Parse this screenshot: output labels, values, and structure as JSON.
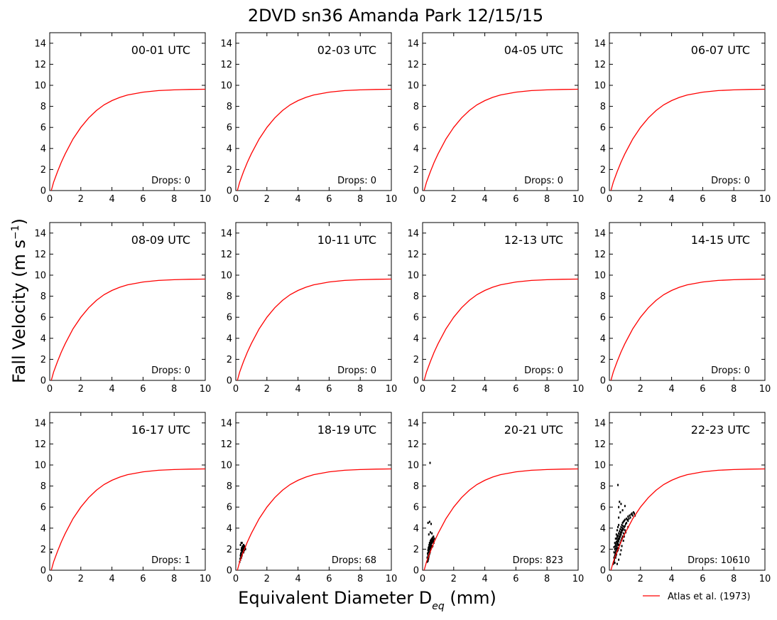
{
  "chart_data": {
    "type": "scatter",
    "title": "2DVD sn36 Amanda Park 12/15/15",
    "xlabel": "Equivalent Diameter D",
    "xlabel_sub": "eq",
    "xlabel_unit": " (mm)",
    "ylabel": "Fall Velocity (m s",
    "ylabel_sup": "−1",
    "ylabel_end": ")",
    "xlim": [
      0,
      10
    ],
    "ylim": [
      0,
      15
    ],
    "xticks": [
      0,
      2,
      4,
      6,
      8,
      10
    ],
    "yticks": [
      0,
      2,
      4,
      6,
      8,
      10,
      12,
      14
    ],
    "grid": false,
    "legend": {
      "placement": "bottom-right",
      "entries": [
        {
          "label": "Atlas et al. (1973)",
          "color": "#ff0000"
        }
      ]
    },
    "curve": {
      "name": "Atlas et al. (1973)",
      "color": "#ff0000",
      "points": [
        [
          0.1,
          0.0
        ],
        [
          0.25,
          0.8
        ],
        [
          0.5,
          1.8
        ],
        [
          0.75,
          2.7
        ],
        [
          1.0,
          3.5
        ],
        [
          1.5,
          4.9
        ],
        [
          2.0,
          6.0
        ],
        [
          2.5,
          6.9
        ],
        [
          3.0,
          7.6
        ],
        [
          3.5,
          8.15
        ],
        [
          4.0,
          8.55
        ],
        [
          4.5,
          8.85
        ],
        [
          5.0,
          9.08
        ],
        [
          6.0,
          9.35
        ],
        [
          7.0,
          9.5
        ],
        [
          8.0,
          9.57
        ],
        [
          9.0,
          9.61
        ],
        [
          10.0,
          9.63
        ]
      ]
    },
    "panels": [
      {
        "title": "00-01 UTC",
        "drops_label": "Drops: 0",
        "drops": 0,
        "points": []
      },
      {
        "title": "02-03 UTC",
        "drops_label": "Drops: 0",
        "drops": 0,
        "points": []
      },
      {
        "title": "04-05 UTC",
        "drops_label": "Drops: 0",
        "drops": 0,
        "points": []
      },
      {
        "title": "06-07 UTC",
        "drops_label": "Drops: 0",
        "drops": 0,
        "points": []
      },
      {
        "title": "08-09 UTC",
        "drops_label": "Drops: 0",
        "drops": 0,
        "points": []
      },
      {
        "title": "10-11 UTC",
        "drops_label": "Drops: 0",
        "drops": 0,
        "points": []
      },
      {
        "title": "12-13 UTC",
        "drops_label": "Drops: 0",
        "drops": 0,
        "points": []
      },
      {
        "title": "14-15 UTC",
        "drops_label": "Drops: 0",
        "drops": 0,
        "points": []
      },
      {
        "title": "16-17 UTC",
        "drops_label": "Drops: 1",
        "drops": 1,
        "points": [
          [
            0.1,
            1.7
          ]
        ]
      },
      {
        "title": "18-19 UTC",
        "drops_label": "Drops: 68",
        "drops": 68,
        "points": [
          [
            0.25,
            0.8
          ],
          [
            0.28,
            1.1
          ],
          [
            0.3,
            1.4
          ],
          [
            0.3,
            1.0
          ],
          [
            0.32,
            1.6
          ],
          [
            0.33,
            1.3
          ],
          [
            0.35,
            1.9
          ],
          [
            0.35,
            1.5
          ],
          [
            0.37,
            2.1
          ],
          [
            0.38,
            1.7
          ],
          [
            0.4,
            2.0
          ],
          [
            0.4,
            1.4
          ],
          [
            0.42,
            2.2
          ],
          [
            0.43,
            1.8
          ],
          [
            0.45,
            2.3
          ],
          [
            0.45,
            1.9
          ],
          [
            0.47,
            2.1
          ],
          [
            0.5,
            2.4
          ],
          [
            0.5,
            2.0
          ],
          [
            0.5,
            1.7
          ],
          [
            0.52,
            2.2
          ],
          [
            0.55,
            2.3
          ],
          [
            0.55,
            1.9
          ],
          [
            0.58,
            2.1
          ],
          [
            0.3,
            2.4
          ],
          [
            0.35,
            2.6
          ],
          [
            0.4,
            2.6
          ],
          [
            0.6,
            2.2
          ],
          [
            0.62,
            2.0
          ],
          [
            0.36,
            1.2
          ]
        ]
      },
      {
        "title": "20-21 UTC",
        "drops_label": "Drops: 823",
        "drops": 823,
        "points": [
          [
            0.3,
            0.8
          ],
          [
            0.3,
            1.2
          ],
          [
            0.32,
            1.6
          ],
          [
            0.33,
            1.0
          ],
          [
            0.35,
            1.9
          ],
          [
            0.35,
            1.4
          ],
          [
            0.37,
            2.1
          ],
          [
            0.38,
            1.7
          ],
          [
            0.4,
            2.2
          ],
          [
            0.4,
            1.8
          ],
          [
            0.4,
            1.3
          ],
          [
            0.42,
            2.4
          ],
          [
            0.42,
            2.0
          ],
          [
            0.45,
            2.6
          ],
          [
            0.45,
            2.2
          ],
          [
            0.45,
            1.6
          ],
          [
            0.47,
            2.4
          ],
          [
            0.48,
            2.0
          ],
          [
            0.5,
            2.8
          ],
          [
            0.5,
            2.4
          ],
          [
            0.5,
            1.9
          ],
          [
            0.52,
            2.6
          ],
          [
            0.52,
            2.2
          ],
          [
            0.55,
            2.9
          ],
          [
            0.55,
            2.5
          ],
          [
            0.55,
            2.1
          ],
          [
            0.58,
            2.7
          ],
          [
            0.58,
            2.3
          ],
          [
            0.6,
            3.0
          ],
          [
            0.6,
            2.6
          ],
          [
            0.6,
            2.2
          ],
          [
            0.62,
            2.8
          ],
          [
            0.65,
            3.1
          ],
          [
            0.65,
            2.7
          ],
          [
            0.65,
            2.3
          ],
          [
            0.68,
            2.9
          ],
          [
            0.7,
            3.2
          ],
          [
            0.7,
            2.8
          ],
          [
            0.72,
            2.6
          ],
          [
            0.75,
            3.0
          ],
          [
            0.35,
            0.9
          ],
          [
            0.38,
            1.1
          ],
          [
            0.43,
            1.5
          ],
          [
            0.48,
            1.7
          ],
          [
            0.53,
            2.0
          ],
          [
            0.35,
            4.5
          ],
          [
            0.45,
            4.6
          ],
          [
            0.5,
            3.6
          ],
          [
            0.55,
            4.4
          ],
          [
            0.4,
            3.4
          ],
          [
            0.6,
            3.5
          ],
          [
            0.48,
            10.2
          ]
        ]
      },
      {
        "title": "22-23 UTC",
        "drops_label": "Drops: 10610",
        "drops": 10610,
        "points": [
          [
            0.25,
            0.6
          ],
          [
            0.3,
            0.8
          ],
          [
            0.3,
            1.2
          ],
          [
            0.3,
            1.7
          ],
          [
            0.32,
            1.0
          ],
          [
            0.35,
            1.4
          ],
          [
            0.35,
            2.0
          ],
          [
            0.35,
            0.7
          ],
          [
            0.38,
            1.6
          ],
          [
            0.38,
            2.3
          ],
          [
            0.4,
            1.2
          ],
          [
            0.4,
            1.8
          ],
          [
            0.4,
            2.5
          ],
          [
            0.42,
            2.1
          ],
          [
            0.42,
            1.4
          ],
          [
            0.45,
            2.7
          ],
          [
            0.45,
            2.0
          ],
          [
            0.45,
            1.5
          ],
          [
            0.48,
            2.3
          ],
          [
            0.48,
            3.0
          ],
          [
            0.5,
            1.8
          ],
          [
            0.5,
            2.5
          ],
          [
            0.5,
            3.2
          ],
          [
            0.52,
            2.8
          ],
          [
            0.52,
            2.1
          ],
          [
            0.55,
            3.3
          ],
          [
            0.55,
            2.6
          ],
          [
            0.55,
            1.9
          ],
          [
            0.58,
            3.0
          ],
          [
            0.58,
            2.4
          ],
          [
            0.6,
            3.5
          ],
          [
            0.6,
            2.8
          ],
          [
            0.6,
            2.1
          ],
          [
            0.62,
            3.2
          ],
          [
            0.65,
            3.7
          ],
          [
            0.65,
            3.0
          ],
          [
            0.65,
            2.4
          ],
          [
            0.68,
            3.4
          ],
          [
            0.7,
            3.9
          ],
          [
            0.7,
            3.2
          ],
          [
            0.7,
            2.6
          ],
          [
            0.72,
            3.6
          ],
          [
            0.75,
            4.1
          ],
          [
            0.75,
            3.4
          ],
          [
            0.75,
            2.8
          ],
          [
            0.78,
            3.8
          ],
          [
            0.8,
            4.3
          ],
          [
            0.8,
            3.6
          ],
          [
            0.8,
            3.0
          ],
          [
            0.83,
            4.0
          ],
          [
            0.85,
            4.5
          ],
          [
            0.85,
            3.8
          ],
          [
            0.85,
            3.2
          ],
          [
            0.88,
            4.2
          ],
          [
            0.9,
            4.6
          ],
          [
            0.9,
            3.9
          ],
          [
            0.92,
            3.5
          ],
          [
            0.95,
            4.7
          ],
          [
            0.95,
            4.1
          ],
          [
            1.0,
            4.8
          ],
          [
            1.0,
            4.2
          ],
          [
            1.0,
            3.8
          ],
          [
            1.05,
            4.4
          ],
          [
            1.1,
            4.9
          ],
          [
            1.1,
            4.5
          ],
          [
            1.15,
            4.8
          ],
          [
            1.2,
            5.1
          ],
          [
            1.2,
            4.7
          ],
          [
            1.25,
            4.9
          ],
          [
            1.3,
            5.2
          ],
          [
            1.35,
            5.0
          ],
          [
            1.4,
            5.3
          ],
          [
            1.45,
            5.4
          ],
          [
            1.5,
            5.2
          ],
          [
            1.55,
            5.5
          ],
          [
            1.6,
            5.4
          ],
          [
            1.65,
            5.2
          ],
          [
            0.3,
            2.2
          ],
          [
            0.35,
            2.6
          ],
          [
            0.4,
            3.0
          ],
          [
            0.45,
            3.4
          ],
          [
            0.5,
            3.8
          ],
          [
            0.55,
            4.1
          ],
          [
            0.6,
            4.3
          ],
          [
            0.6,
            5.0
          ],
          [
            0.7,
            5.5
          ],
          [
            0.6,
            6.0
          ],
          [
            0.65,
            6.5
          ],
          [
            0.55,
            8.1
          ],
          [
            0.75,
            6.3
          ],
          [
            0.85,
            5.7
          ],
          [
            1.0,
            6.1
          ],
          [
            0.5,
            0.6
          ],
          [
            0.6,
            1.0
          ],
          [
            0.7,
            1.5
          ],
          [
            0.75,
            1.9
          ],
          [
            0.8,
            2.3
          ],
          [
            0.9,
            2.8
          ],
          [
            0.95,
            3.2
          ],
          [
            1.05,
            3.6
          ],
          [
            1.2,
            4.1
          ]
        ]
      }
    ]
  }
}
